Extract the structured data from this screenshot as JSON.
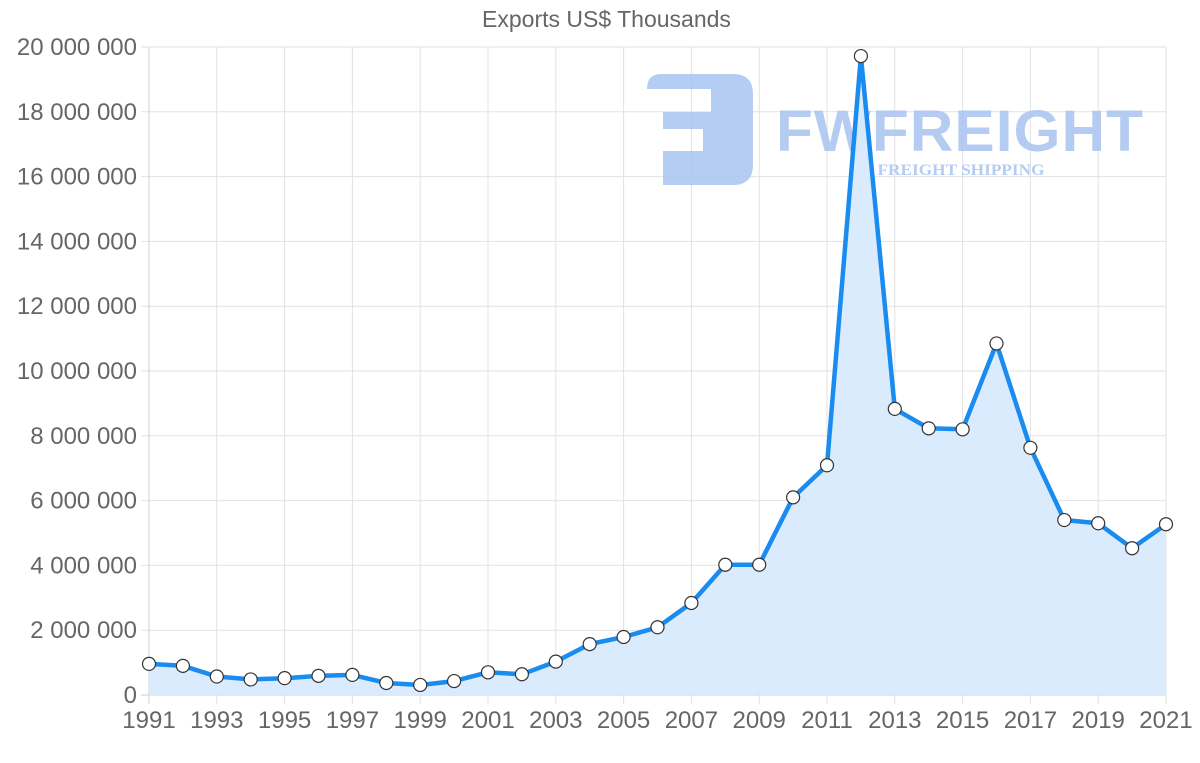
{
  "chart_data": {
    "type": "line",
    "title": "Exports US$ Thousands",
    "xlabel": "",
    "ylabel": "",
    "x": [
      1991,
      1992,
      1993,
      1994,
      1995,
      1996,
      1997,
      1998,
      1999,
      2000,
      2001,
      2002,
      2003,
      2004,
      2005,
      2006,
      2007,
      2008,
      2009,
      2010,
      2011,
      2012,
      2013,
      2014,
      2015,
      2016,
      2017,
      2018,
      2019,
      2020,
      2021
    ],
    "series": [
      {
        "name": "Exports US$ Thousands",
        "values": [
          960000,
          900000,
          570000,
          480000,
          520000,
          590000,
          620000,
          370000,
          310000,
          430000,
          700000,
          640000,
          1030000,
          1570000,
          1790000,
          2090000,
          2840000,
          4020000,
          4020000,
          6100000,
          7090000,
          19720000,
          8830000,
          8230000,
          8200000,
          10850000,
          7630000,
          5400000,
          5300000,
          4530000,
          5270000
        ]
      }
    ],
    "ylim": [
      0,
      20000000
    ],
    "y_ticks": [
      0,
      2000000,
      4000000,
      6000000,
      8000000,
      10000000,
      12000000,
      14000000,
      16000000,
      18000000,
      20000000
    ],
    "y_tick_labels": [
      "0",
      "2 000 000",
      "4 000 000",
      "6 000 000",
      "8 000 000",
      "10 000 000",
      "12 000 000",
      "14 000 000",
      "16 000 000",
      "18 000 000",
      "20 000 000"
    ],
    "x_tick_labels": [
      "1991",
      "1993",
      "1995",
      "1997",
      "1999",
      "2001",
      "2003",
      "2005",
      "2007",
      "2009",
      "2011",
      "2013",
      "2015",
      "2017",
      "2019",
      "2021"
    ],
    "grid": true,
    "legend": "none",
    "filled_area": true
  },
  "colors": {
    "line": "#1a8cef",
    "fill": "#d7eafc",
    "point_fill": "#ffffff",
    "point_stroke": "#333333",
    "grid": "#e2e2e2",
    "text": "#666666",
    "watermark": "#a8c4f0"
  },
  "watermark": {
    "brand": "FWFREIGHT",
    "tagline": "FREIGHT SHIPPING"
  }
}
